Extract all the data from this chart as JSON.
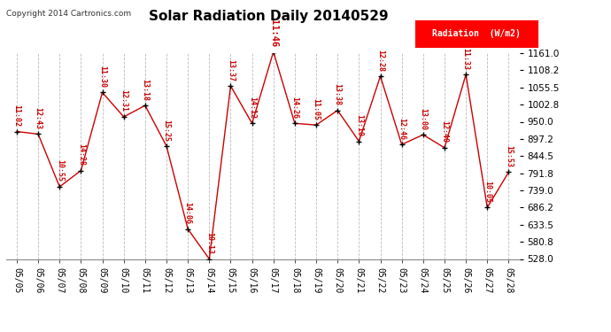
{
  "title": "Solar Radiation Daily 20140529",
  "copyright": "Copyright 2014 Cartronics.com",
  "legend_label": "Radiation  (W/m2)",
  "background_color": "#ffffff",
  "plot_bg_color": "#ffffff",
  "grid_color": "#bbbbbb",
  "line_color": "#cc0000",
  "title_color": "#000000",
  "dates": [
    "05/05",
    "05/06",
    "05/07",
    "05/08",
    "05/09",
    "05/10",
    "05/11",
    "05/12",
    "05/13",
    "05/14",
    "05/15",
    "05/16",
    "05/17",
    "05/18",
    "05/19",
    "05/20",
    "05/21",
    "05/22",
    "05/23",
    "05/24",
    "05/25",
    "05/26",
    "05/27",
    "05/28"
  ],
  "values": [
    920,
    912,
    750,
    800,
    1040,
    965,
    1000,
    875,
    620,
    528,
    1060,
    945,
    1165,
    945,
    940,
    985,
    890,
    1090,
    880,
    910,
    870,
    1095,
    686,
    795
  ],
  "labels": [
    "11:02",
    "12:43",
    "10:55",
    "14:28",
    "11:30",
    "12:31",
    "13:18",
    "15:25",
    "14:06",
    "10:13",
    "13:37",
    "14:12",
    "11:46",
    "14:26",
    "11:05",
    "13:38",
    "13:10",
    "12:28",
    "12:46",
    "13:00",
    "12:40",
    "11:33",
    "10:05",
    "15:53"
  ],
  "peak_index": 12,
  "ylim_min": 528.0,
  "ylim_max": 1161.0,
  "yticks": [
    528.0,
    580.8,
    633.5,
    686.2,
    739.0,
    791.8,
    844.5,
    897.2,
    950.0,
    1002.8,
    1055.5,
    1108.2,
    1161.0
  ]
}
